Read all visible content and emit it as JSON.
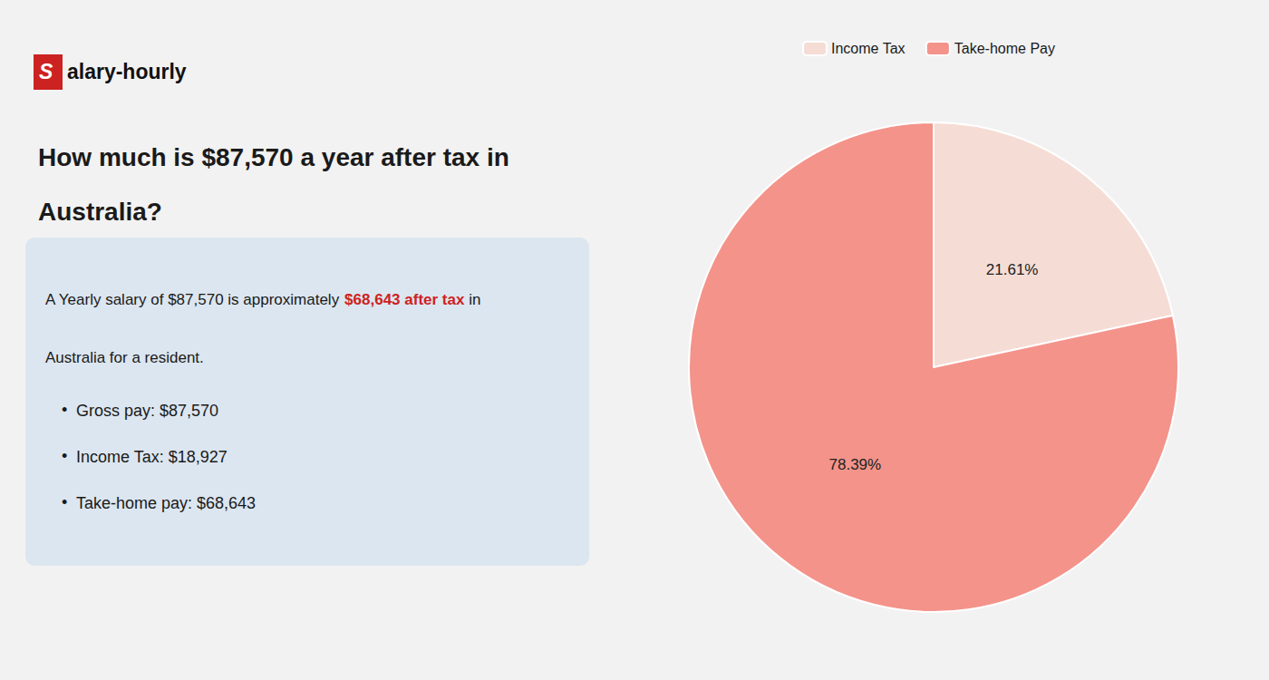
{
  "chart_data": {
    "type": "pie",
    "title": "How much is $87,570 a year after tax in\nAustralia?",
    "categories": [
      "Income Tax",
      "Take-home Pay"
    ],
    "values": [
      21.61,
      78.39
    ],
    "value_labels": [
      "21.61%",
      "78.39%"
    ],
    "colors": [
      "#f5ddd5",
      "#f4938a"
    ],
    "data_labels": true,
    "legend": "top",
    "annotations": [
      [
        {
          "text": "S",
          "color": "#cc2222"
        },
        {
          "text": "alary-hourly"
        }
      ],
      [
        {
          "text": "A Yearly salary of $87,570 is approximately "
        },
        {
          "text": "$68,643 after tax",
          "color": "#cc2222"
        },
        {
          "text": " in"
        }
      ],
      [
        {
          "text": "Australia for a resident."
        }
      ],
      [
        {
          "text": "•"
        },
        {
          "text": "Gross pay: $87,570"
        }
      ],
      [
        {
          "text": "•"
        },
        {
          "text": "Income Tax: $18,927"
        }
      ],
      [
        {
          "text": "•"
        },
        {
          "text": "Take-home pay: $68,643"
        }
      ]
    ]
  }
}
